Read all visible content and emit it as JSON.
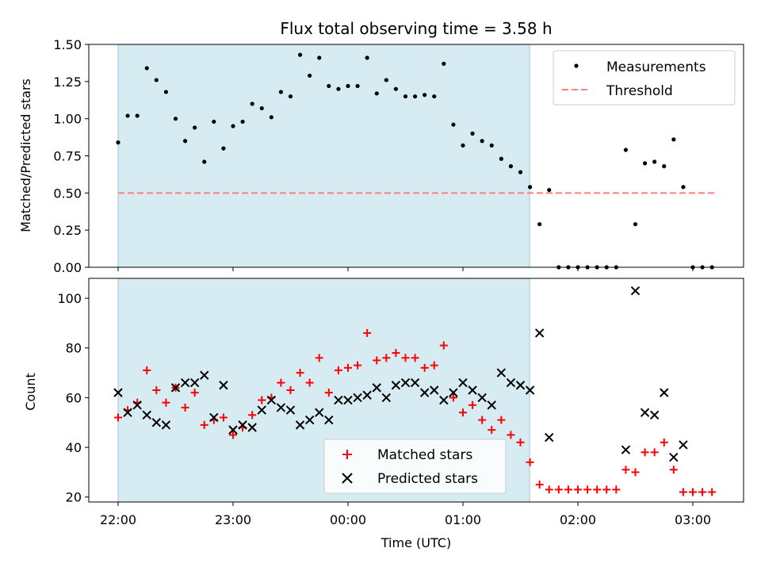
{
  "chart_data": [
    {
      "panel": "top",
      "type": "scatter",
      "title": "Flux total observing time = 3.58 h",
      "xlabel": "",
      "ylabel": "Matched/Predicted stars",
      "ylim": [
        0,
        1.5
      ],
      "yticks": [
        "0.00",
        "0.25",
        "0.50",
        "0.75",
        "1.00",
        "1.25",
        "1.50"
      ],
      "shaded_interval_hours": [
        0.0,
        3.58
      ],
      "threshold": {
        "name": "Threshold",
        "value": 0.5,
        "x_range_hours": [
          0.0,
          5.2
        ],
        "color": "#ff7f7f"
      },
      "legend": {
        "position": "top-right",
        "entries": [
          "Measurements",
          "Threshold"
        ]
      },
      "series": [
        {
          "name": "Measurements",
          "color": "#000000",
          "x_hours": [
            0.0,
            0.0833,
            0.1667,
            0.25,
            0.3333,
            0.4167,
            0.5,
            0.5833,
            0.6667,
            0.75,
            0.8333,
            0.9167,
            1.0,
            1.0833,
            1.1667,
            1.25,
            1.3333,
            1.4167,
            1.5,
            1.5833,
            1.6667,
            1.75,
            1.8333,
            1.9167,
            2.0,
            2.0833,
            2.1667,
            2.25,
            2.3333,
            2.4167,
            2.5,
            2.5833,
            2.6667,
            2.75,
            2.8333,
            2.9167,
            3.0,
            3.0833,
            3.1667,
            3.25,
            3.3333,
            3.4167,
            3.5,
            3.5833,
            3.6667,
            3.75,
            3.8333,
            3.9167,
            4.0,
            4.0833,
            4.1667,
            4.25,
            4.3333,
            4.4167,
            4.5,
            4.5833,
            4.6667,
            4.75,
            4.8333,
            4.9167,
            5.0,
            5.0833,
            5.1667
          ],
          "y": [
            0.84,
            1.02,
            1.02,
            1.34,
            1.26,
            1.18,
            1.0,
            0.85,
            0.94,
            0.71,
            0.98,
            0.8,
            0.95,
            0.98,
            1.1,
            1.07,
            1.01,
            1.18,
            1.15,
            1.43,
            1.29,
            1.41,
            1.22,
            1.2,
            1.22,
            1.22,
            1.41,
            1.17,
            1.26,
            1.2,
            1.15,
            1.15,
            1.16,
            1.15,
            1.37,
            0.96,
            0.82,
            0.9,
            0.85,
            0.82,
            0.73,
            0.68,
            0.64,
            0.54,
            0.29,
            0.52,
            0,
            0,
            0,
            0,
            0,
            0,
            0,
            0.79,
            0.29,
            0.7,
            0.71,
            0.68,
            0.86,
            0.54,
            0,
            0,
            0
          ]
        }
      ]
    },
    {
      "panel": "bottom",
      "type": "scatter",
      "title": "",
      "xlabel": "Time (UTC)",
      "ylabel": "Count",
      "ylim": [
        18,
        108
      ],
      "yticks": [
        "20",
        "40",
        "60",
        "80",
        "100"
      ],
      "xticks": [
        "22:00",
        "23:00",
        "00:00",
        "01:00",
        "02:00",
        "03:00"
      ],
      "shaded_interval_hours": [
        0.0,
        3.58
      ],
      "legend": {
        "position": "bottom-center",
        "entries": [
          "Matched stars",
          "Predicted stars"
        ]
      },
      "series": [
        {
          "name": "Matched stars",
          "marker": "plus",
          "color": "#ff0000",
          "x_hours": [
            0.0,
            0.0833,
            0.1667,
            0.25,
            0.3333,
            0.4167,
            0.5,
            0.5833,
            0.6667,
            0.75,
            0.8333,
            0.9167,
            1.0,
            1.0833,
            1.1667,
            1.25,
            1.3333,
            1.4167,
            1.5,
            1.5833,
            1.6667,
            1.75,
            1.8333,
            1.9167,
            2.0,
            2.0833,
            2.1667,
            2.25,
            2.3333,
            2.4167,
            2.5,
            2.5833,
            2.6667,
            2.75,
            2.8333,
            2.9167,
            3.0,
            3.0833,
            3.1667,
            3.25,
            3.3333,
            3.4167,
            3.5,
            3.5833,
            3.6667,
            3.75,
            3.8333,
            3.9167,
            4.0,
            4.0833,
            4.1667,
            4.25,
            4.3333,
            4.4167,
            4.5,
            4.5833,
            4.6667,
            4.75,
            4.8333,
            4.9167,
            5.0,
            5.0833,
            5.1667
          ],
          "y": [
            52,
            55,
            58,
            71,
            63,
            58,
            64,
            56,
            62,
            49,
            51,
            52,
            45,
            48,
            53,
            59,
            60,
            66,
            63,
            70,
            66,
            76,
            62,
            71,
            72,
            73,
            86,
            75,
            76,
            78,
            76,
            76,
            72,
            73,
            81,
            60,
            54,
            57,
            51,
            47,
            51,
            45,
            42,
            34,
            25,
            23,
            23,
            23,
            23,
            23,
            23,
            23,
            23,
            31,
            30,
            38,
            38,
            42,
            31,
            22,
            22,
            22,
            22
          ]
        },
        {
          "name": "Predicted stars",
          "marker": "x",
          "color": "#000000",
          "x_hours": [
            0.0,
            0.0833,
            0.1667,
            0.25,
            0.3333,
            0.4167,
            0.5,
            0.5833,
            0.6667,
            0.75,
            0.8333,
            0.9167,
            1.0,
            1.0833,
            1.1667,
            1.25,
            1.3333,
            1.4167,
            1.5,
            1.5833,
            1.6667,
            1.75,
            1.8333,
            1.9167,
            2.0,
            2.0833,
            2.1667,
            2.25,
            2.3333,
            2.4167,
            2.5,
            2.5833,
            2.6667,
            2.75,
            2.8333,
            2.9167,
            3.0,
            3.0833,
            3.1667,
            3.25,
            3.3333,
            3.4167,
            3.5,
            3.5833,
            3.6667,
            3.75,
            4.4167,
            4.5,
            4.5833,
            4.6667,
            4.75,
            4.8333,
            4.9167
          ],
          "y": [
            62,
            54,
            57,
            53,
            50,
            49,
            64,
            66,
            66,
            69,
            52,
            65,
            47,
            49,
            48,
            55,
            59,
            56,
            55,
            49,
            51,
            54,
            51,
            59,
            59,
            60,
            61,
            64,
            60,
            65,
            66,
            66,
            62,
            63,
            59,
            62,
            66,
            63,
            60,
            57,
            70,
            66,
            65,
            63,
            86,
            44,
            39,
            103,
            54,
            53,
            62,
            36,
            41
          ]
        }
      ]
    }
  ]
}
